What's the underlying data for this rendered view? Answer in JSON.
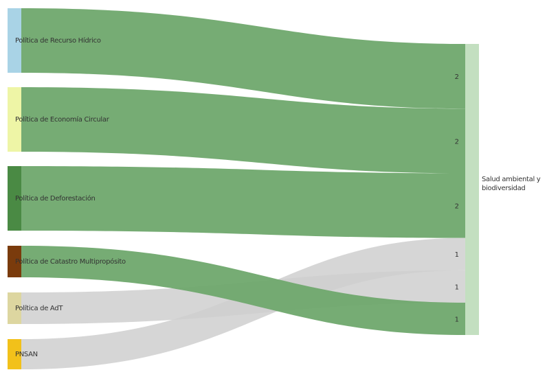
{
  "chart_data": {
    "type": "sankey",
    "sources": [
      {
        "id": "s1",
        "label": "Política de Recurso Hídrico",
        "color": "#a9d3e6"
      },
      {
        "id": "s2",
        "label": "Política de Economía Circular",
        "color": "#eef5a6"
      },
      {
        "id": "s3",
        "label": "Política de Deforestación",
        "color": "#4a8a44"
      },
      {
        "id": "s4",
        "label": "Política de Catastro Multipropósito",
        "color": "#7a3b0c"
      },
      {
        "id": "s5",
        "label": "Política de AdT",
        "color": "#ddd6a0"
      },
      {
        "id": "s6",
        "label": "PNSAN",
        "color": "#f2c11a"
      }
    ],
    "target": {
      "id": "t1",
      "label": "Salud ambiental y biodiversidad",
      "label_lines": [
        "Salud ambiental y",
        "biodiversidad"
      ],
      "color": "#c3dfc0"
    },
    "links": [
      {
        "source": "s1",
        "value": 2,
        "color": "#6fa86d"
      },
      {
        "source": "s2",
        "value": 2,
        "color": "#6fa86d"
      },
      {
        "source": "s3",
        "value": 2,
        "color": "#6fa86d"
      },
      {
        "source": "s6",
        "value": 1,
        "color": "#cfcfcf"
      },
      {
        "source": "s5",
        "value": 1,
        "color": "#cfcfcf"
      },
      {
        "source": "s4",
        "value": 1,
        "color": "#6fa86d"
      }
    ]
  }
}
